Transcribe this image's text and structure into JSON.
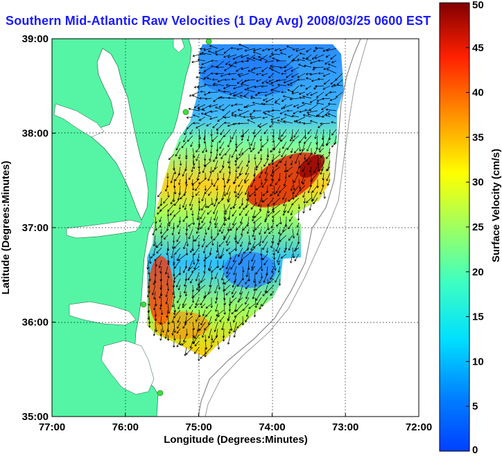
{
  "title": "Southern Mid-Atlantic Raw Velocities (1 Day Avg) 2008/03/25 0600 EST",
  "x_axis": {
    "label": "Longitude (Degrees:Minutes)",
    "ticks": [
      "77:00",
      "76:00",
      "75:00",
      "74:00",
      "73:00",
      "72:00"
    ]
  },
  "y_axis": {
    "label": "Latitude (Degrees:Minutes)",
    "ticks": [
      "39:00",
      "38:00",
      "37:00",
      "36:00",
      "35:00"
    ]
  },
  "colorbar": {
    "label": "Surface Velocity (cm/s)",
    "ticks": [
      "50",
      "45",
      "40",
      "35",
      "30",
      "25",
      "20",
      "15",
      "10",
      "5",
      "0"
    ],
    "min": 0,
    "max": 50
  },
  "colors": {
    "land": "#55f5a5",
    "title": "#1a1aff",
    "station": "#3fdc3f"
  },
  "grid": "dotted"
}
